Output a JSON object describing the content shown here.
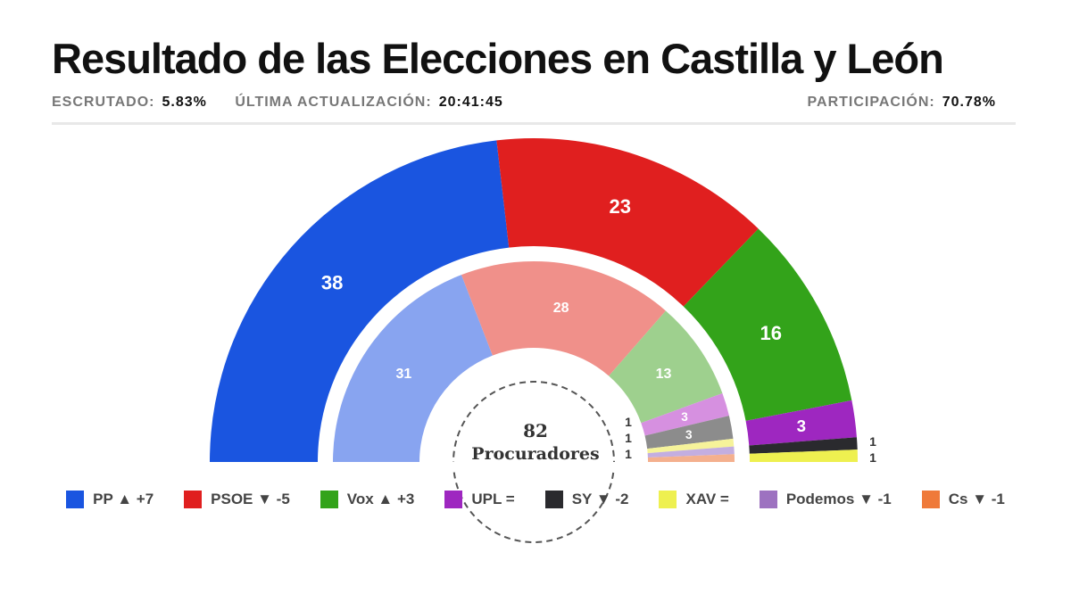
{
  "title": "Resultado de las Elecciones en Castilla y León",
  "meta": {
    "escrutado_label": "ESCRUTADO:",
    "escrutado": "5.83%",
    "actualizacion_label": "ÚLTIMA ACTUALIZACIÓN:",
    "actualizacion": "20:41:45",
    "participacion_label": "PARTICIPACIÓN:",
    "participacion": "70.78%"
  },
  "chart_data": {
    "type": "parliament-donut",
    "center_total": "82",
    "center_label": "Procuradores",
    "outer_ring": {
      "parties": [
        "PP",
        "PSOE",
        "Vox",
        "UPL",
        "SY",
        "XAV"
      ],
      "values": [
        38,
        23,
        16,
        3,
        1,
        1
      ],
      "colors": [
        "#1a55e0",
        "#e01f1f",
        "#33a31a",
        "#9e27c0",
        "#2a2a2e",
        "#eef050"
      ]
    },
    "inner_ring": {
      "parties": [
        "PP",
        "PSOE",
        "Vox",
        "UPL",
        "SY",
        "XAV",
        "Podemos",
        "Cs"
      ],
      "values": [
        31,
        28,
        13,
        3,
        3,
        1,
        1,
        1
      ],
      "colors": [
        "#88a4f0",
        "#f0908a",
        "#9ed08e",
        "#d690e0",
        "#8c8c8c",
        "#f6f39a",
        "#c3aee0",
        "#f4b08e"
      ]
    },
    "legend": [
      {
        "label": "PP ▲ +7",
        "color": "#1a55e0"
      },
      {
        "label": "PSOE ▼ -5",
        "color": "#e01f1f"
      },
      {
        "label": "Vox ▲ +3",
        "color": "#33a31a"
      },
      {
        "label": "UPL =",
        "color": "#9e27c0"
      },
      {
        "label": "SY ▼ -2",
        "color": "#2a2a2e"
      },
      {
        "label": "XAV =",
        "color": "#eef050"
      },
      {
        "label": "Podemos ▼ -1",
        "color": "#9d72c0"
      },
      {
        "label": "Cs ▼ -1",
        "color": "#ef7a3a"
      }
    ]
  }
}
